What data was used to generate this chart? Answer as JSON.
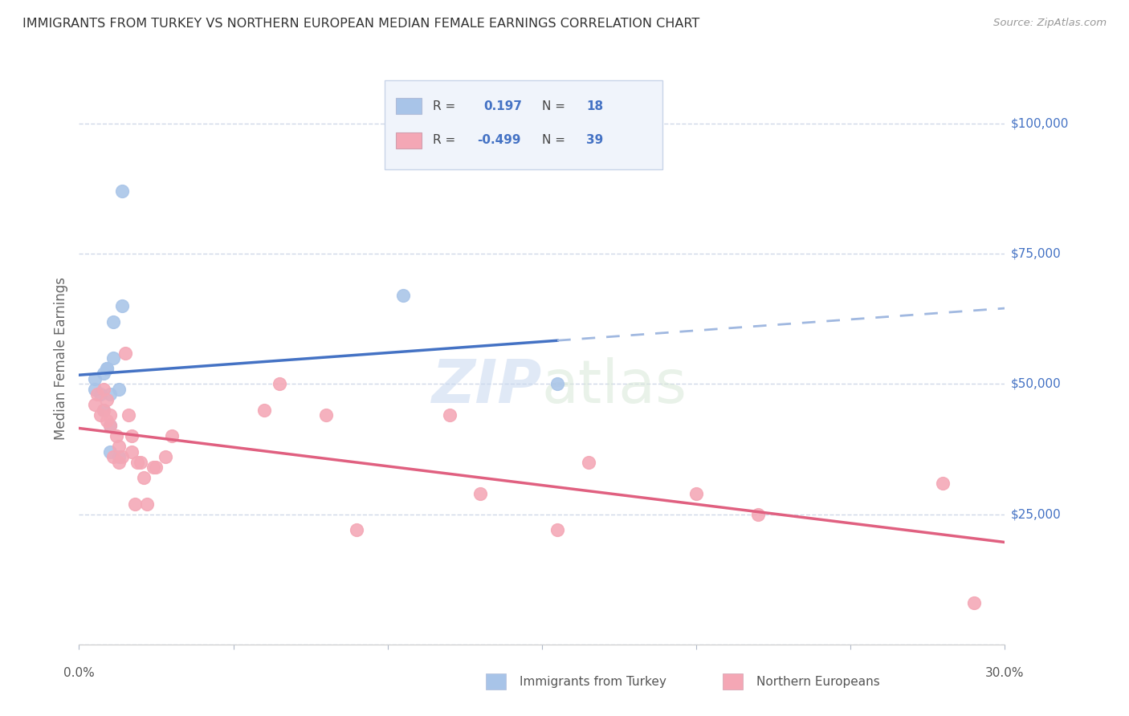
{
  "title": "IMMIGRANTS FROM TURKEY VS NORTHERN EUROPEAN MEDIAN FEMALE EARNINGS CORRELATION CHART",
  "source": "Source: ZipAtlas.com",
  "ylabel": "Median Female Earnings",
  "watermark_zip": "ZIP",
  "watermark_atlas": "atlas",
  "y_ticks": [
    0,
    25000,
    50000,
    75000,
    100000
  ],
  "xlim": [
    0.0,
    0.3
  ],
  "ylim": [
    0,
    110000
  ],
  "turkey_R": 0.197,
  "turkey_N": 18,
  "northern_R": -0.499,
  "northern_N": 39,
  "turkey_color": "#a8c4e8",
  "northern_color": "#f4a7b5",
  "trend_turkey_color": "#4472c4",
  "trend_turkey_dash_color": "#a0b8e0",
  "trend_northern_color": "#e06080",
  "background_color": "#ffffff",
  "grid_color": "#d0d8e8",
  "right_label_color": "#4472c4",
  "legend_box_color": "#f0f4fb",
  "legend_border_color": "#c8d4e8",
  "turkey_x": [
    0.005,
    0.005,
    0.007,
    0.008,
    0.008,
    0.009,
    0.009,
    0.01,
    0.01,
    0.01,
    0.011,
    0.011,
    0.013,
    0.013,
    0.014,
    0.014,
    0.105,
    0.155
  ],
  "turkey_y": [
    51000,
    49000,
    48000,
    45000,
    52000,
    53000,
    53000,
    42000,
    48000,
    37000,
    62000,
    55000,
    36000,
    49000,
    87000,
    65000,
    67000,
    50000
  ],
  "northern_x": [
    0.005,
    0.006,
    0.007,
    0.008,
    0.008,
    0.009,
    0.009,
    0.01,
    0.01,
    0.011,
    0.012,
    0.013,
    0.013,
    0.014,
    0.015,
    0.016,
    0.017,
    0.017,
    0.018,
    0.019,
    0.02,
    0.021,
    0.022,
    0.024,
    0.025,
    0.028,
    0.03,
    0.06,
    0.065,
    0.08,
    0.09,
    0.12,
    0.13,
    0.155,
    0.165,
    0.2,
    0.22,
    0.28,
    0.29
  ],
  "northern_y": [
    46000,
    48000,
    44000,
    49000,
    45000,
    47000,
    43000,
    44000,
    42000,
    36000,
    40000,
    38000,
    35000,
    36000,
    56000,
    44000,
    40000,
    37000,
    27000,
    35000,
    35000,
    32000,
    27000,
    34000,
    34000,
    36000,
    40000,
    45000,
    50000,
    44000,
    22000,
    44000,
    29000,
    22000,
    35000,
    29000,
    25000,
    31000,
    8000
  ]
}
